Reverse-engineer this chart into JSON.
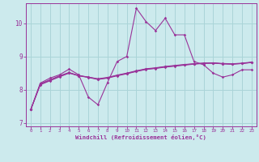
{
  "background_color": "#cceaed",
  "grid_color": "#aad4d8",
  "line_color": "#993399",
  "xlabel": "Windchill (Refroidissement éolien,°C)",
  "xlabel_color": "#993399",
  "tick_color": "#993399",
  "spine_color": "#993399",
  "ylim": [
    6.9,
    10.6
  ],
  "xlim": [
    -0.5,
    23.5
  ],
  "yticks": [
    7,
    8,
    9,
    10
  ],
  "xticks": [
    0,
    1,
    2,
    3,
    4,
    5,
    6,
    7,
    8,
    9,
    10,
    11,
    12,
    13,
    14,
    15,
    16,
    17,
    18,
    19,
    20,
    21,
    22,
    23
  ],
  "series1_x": [
    0,
    1,
    2,
    3,
    4,
    5,
    6,
    7,
    8,
    9,
    10,
    11,
    12,
    13,
    14,
    15,
    16,
    17,
    18,
    19,
    20,
    21,
    22,
    23
  ],
  "series1_y": [
    7.4,
    8.2,
    8.35,
    8.45,
    8.62,
    8.45,
    7.78,
    7.55,
    8.22,
    8.85,
    9.0,
    10.45,
    10.05,
    9.78,
    10.15,
    9.65,
    9.65,
    8.85,
    8.75,
    8.5,
    8.38,
    8.45,
    8.6,
    8.6
  ],
  "series2_x": [
    0,
    1,
    2,
    3,
    4,
    5,
    6,
    7,
    8,
    9,
    10,
    11,
    12,
    13,
    14,
    15,
    16,
    17,
    18,
    19,
    20,
    21,
    22,
    23
  ],
  "series2_y": [
    7.4,
    8.18,
    8.3,
    8.42,
    8.52,
    8.42,
    8.38,
    8.33,
    8.37,
    8.44,
    8.5,
    8.57,
    8.63,
    8.66,
    8.7,
    8.73,
    8.76,
    8.78,
    8.8,
    8.8,
    8.78,
    8.77,
    8.79,
    8.82
  ],
  "series3_x": [
    0,
    1,
    2,
    3,
    4,
    5,
    6,
    7,
    8,
    9,
    10,
    11,
    12,
    13,
    14,
    15,
    16,
    17,
    18,
    19,
    20,
    21,
    22,
    23
  ],
  "series3_y": [
    7.4,
    8.15,
    8.27,
    8.39,
    8.5,
    8.42,
    8.37,
    8.31,
    8.35,
    8.42,
    8.48,
    8.55,
    8.61,
    8.64,
    8.68,
    8.71,
    8.74,
    8.77,
    8.79,
    8.8,
    8.78,
    8.77,
    8.79,
    8.82
  ],
  "series4_x": [
    0,
    1,
    2,
    3,
    4,
    5,
    6,
    7,
    8,
    9,
    10,
    11,
    12,
    13,
    14,
    15,
    16,
    17,
    18,
    19,
    20,
    21,
    22,
    23
  ],
  "series4_y": [
    7.4,
    8.17,
    8.28,
    8.4,
    8.51,
    8.43,
    8.38,
    8.32,
    8.36,
    8.43,
    8.49,
    8.56,
    8.62,
    8.65,
    8.69,
    8.72,
    8.75,
    8.78,
    8.8,
    8.81,
    8.79,
    8.78,
    8.8,
    8.83
  ]
}
